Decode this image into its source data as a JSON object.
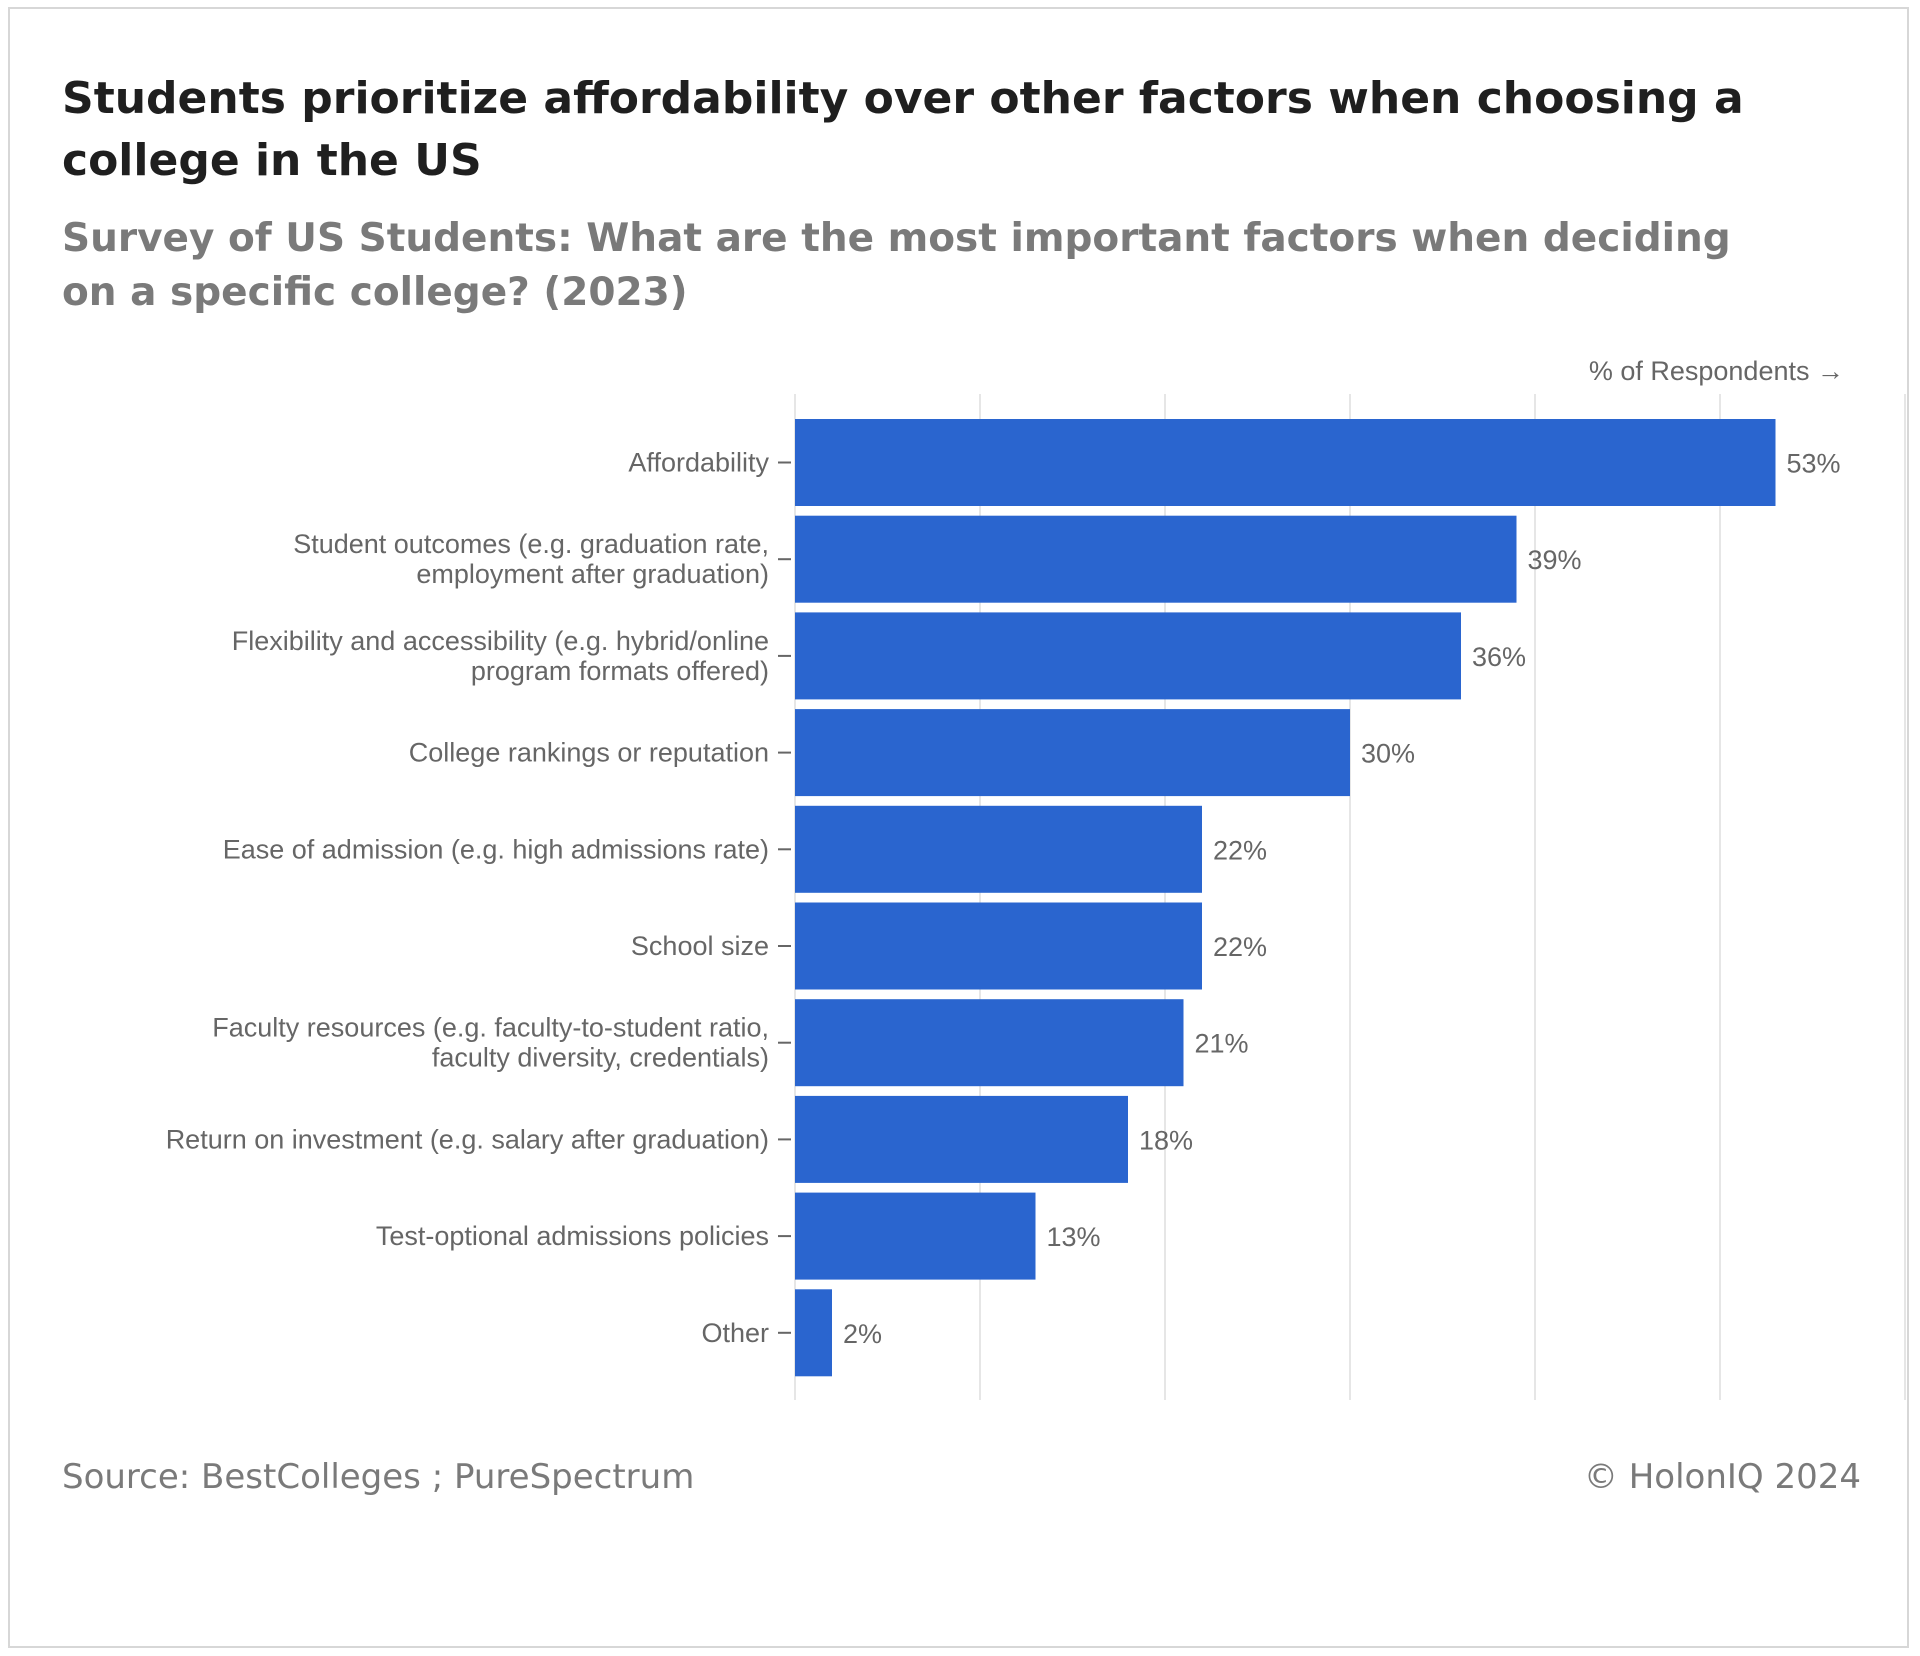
{
  "header": {
    "title": "Students prioritize affordability over other factors when choosing a college in the US",
    "subtitle": "Survey of US Students: What are the most important factors when deciding on a specific college? (2023)"
  },
  "footer": {
    "source": "Source: BestColleges ; PureSpectrum",
    "credit": "© HolonIQ 2024"
  },
  "chart_data": {
    "type": "bar",
    "orientation": "horizontal",
    "title": "Students prioritize affordability over other factors when choosing a college in the US",
    "subtitle": "Survey of US Students: What are the most important factors when deciding on a specific college? (2023)",
    "axis_label": "% of Respondents →",
    "value_suffix": "%",
    "categories": [
      [
        "Affordability"
      ],
      [
        "Student outcomes (e.g. graduation rate,",
        "employment after graduation)"
      ],
      [
        "Flexibility and accessibility (e.g. hybrid/online",
        "program formats offered)"
      ],
      [
        "College rankings or reputation"
      ],
      [
        "Ease of admission (e.g. high admissions rate)"
      ],
      [
        "School size"
      ],
      [
        "Faculty resources (e.g. faculty-to-student ratio,",
        "faculty diversity, credentials)"
      ],
      [
        "Return on investment (e.g. salary after graduation)"
      ],
      [
        "Test-optional admissions policies"
      ],
      [
        "Other"
      ]
    ],
    "values": [
      53,
      39,
      36,
      30,
      22,
      22,
      21,
      18,
      13,
      2
    ],
    "xlim": [
      0,
      60
    ],
    "grid": true,
    "legend": "none",
    "bar_color": "#2a65cf",
    "grid_color": "#e6e6e6"
  }
}
